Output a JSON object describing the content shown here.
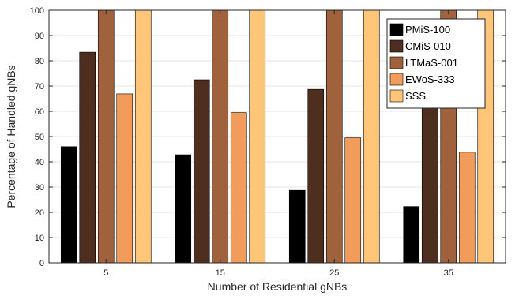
{
  "chart_data": {
    "type": "bar",
    "xlabel": "Number of Residential gNBs",
    "ylabel": "Percentage of Handled gNBs",
    "categories": [
      "5",
      "15",
      "25",
      "35"
    ],
    "ylim": [
      0,
      100
    ],
    "yticks": [
      0,
      10,
      20,
      30,
      40,
      50,
      60,
      70,
      80,
      90,
      100
    ],
    "grid": true,
    "legend_position": "top-right",
    "series": [
      {
        "name": "PMiS-100",
        "color": "#000000",
        "values": [
          46,
          42.8,
          28.7,
          22.3
        ]
      },
      {
        "name": "CMiS-010",
        "color": "#4d2e1f",
        "values": [
          83.4,
          72.5,
          68.7,
          62.2
        ]
      },
      {
        "name": "LTMaS-001",
        "color": "#a0623c",
        "values": [
          100,
          100,
          100,
          100
        ]
      },
      {
        "name": "EWoS-333",
        "color": "#f29c5c",
        "values": [
          66.9,
          59.5,
          49.5,
          43.8
        ]
      },
      {
        "name": "SSS",
        "color": "#ffc67a",
        "values": [
          100,
          100,
          100,
          100
        ]
      }
    ]
  }
}
